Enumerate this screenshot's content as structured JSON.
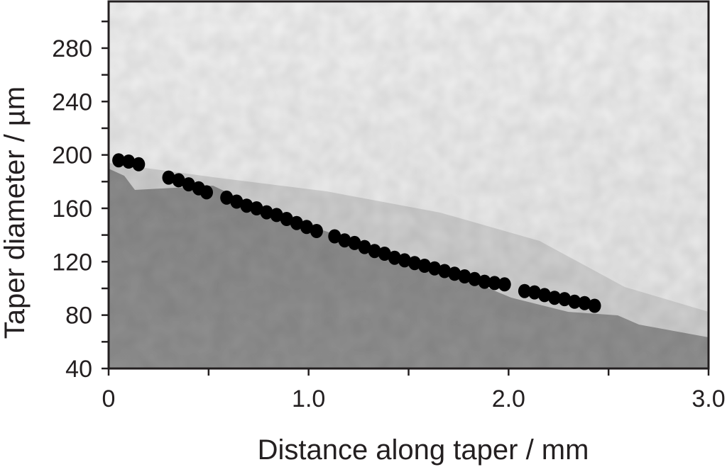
{
  "chart_data": {
    "type": "scatter",
    "title": "",
    "xlabel": "Distance along taper / mm",
    "ylabel": "Taper diameter / µm",
    "xlim": [
      0,
      3.0
    ],
    "ylim": [
      40,
      315
    ],
    "x_ticks": [
      0,
      1.0,
      2.0,
      3.0
    ],
    "x_tick_labels": [
      "0",
      "1.0",
      "2.0",
      "3.0"
    ],
    "y_ticks": [
      40,
      80,
      120,
      160,
      200,
      240,
      280
    ],
    "y_tick_labels": [
      "40",
      "80",
      "120",
      "160",
      "200",
      "240",
      "280"
    ],
    "grid": false,
    "legend": "none",
    "background": "grayscale intensity map: dark gray below the taper edge, light gray above",
    "colors": {
      "points": "#000000",
      "frame": "#231f20",
      "dark_region": "#8c8c8c",
      "light_region": "#ececec"
    },
    "series": [
      {
        "x": [
          0.05,
          0.1,
          0.15,
          0.3,
          0.35,
          0.4,
          0.45,
          0.49,
          0.59,
          0.64,
          0.69,
          0.74,
          0.79,
          0.84,
          0.89,
          0.94,
          0.99,
          1.04,
          1.13,
          1.18,
          1.23,
          1.28,
          1.33,
          1.38,
          1.43,
          1.48,
          1.53,
          1.58,
          1.63,
          1.68,
          1.73,
          1.78,
          1.83,
          1.88,
          1.93,
          1.98,
          2.08,
          2.13,
          2.18,
          2.23,
          2.28,
          2.33,
          2.38,
          2.43
        ],
        "y": [
          196,
          195,
          193,
          183,
          181,
          178,
          175,
          172,
          168,
          165,
          162,
          160,
          157,
          155,
          152,
          149,
          146,
          143,
          139,
          136,
          134,
          131,
          128,
          126,
          123,
          121,
          119,
          117,
          115,
          113,
          111,
          109,
          107,
          105,
          104,
          103,
          98,
          97,
          95,
          93,
          92,
          90,
          89,
          87
        ]
      }
    ]
  }
}
